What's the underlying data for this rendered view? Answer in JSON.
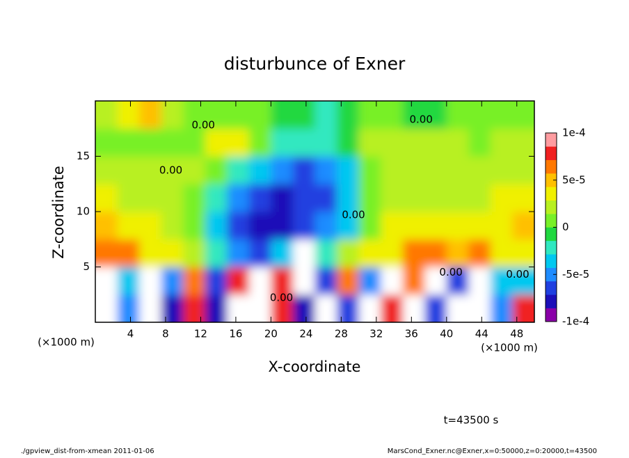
{
  "chart_data": {
    "type": "heatmap",
    "title": "disturbunce of Exner",
    "xlabel": "X-coordinate",
    "ylabel": "Z-coordinate",
    "xunit": "(×1000 m)",
    "yunit": "(×1000 m)",
    "time_label": "t=43500 s",
    "footer_left": "./gpview_dist-from-xmean  2011-01-06",
    "footer_right": "MarsCond_Exner.nc@Exner,x=0:50000,z=0:20000,t=43500",
    "xlim": [
      0,
      50
    ],
    "ylim": [
      0,
      20
    ],
    "xticks": [
      4,
      8,
      12,
      16,
      20,
      24,
      28,
      32,
      36,
      40,
      44,
      48
    ],
    "yticks": [
      5,
      10,
      15
    ],
    "x": [
      1.25,
      3.75,
      6.25,
      8.75,
      11.25,
      13.75,
      16.25,
      18.75,
      21.25,
      23.75,
      26.25,
      28.75,
      31.25,
      33.75,
      36.25,
      38.75,
      41.25,
      43.75,
      46.25,
      48.75
    ],
    "y": [
      1.25,
      3.75,
      6.25,
      8.75,
      11.25,
      13.75,
      16.25,
      18.75
    ],
    "values": [
      [
        0.00012,
        -5e-05,
        0.00012,
        -8e-05,
        8e-05,
        -8e-05,
        0.00012,
        0.00012,
        8e-05,
        -8e-05,
        0.00012,
        -7e-05,
        0.00012,
        8e-05,
        0.00012,
        -6e-05,
        0.00012,
        0.00012,
        -5e-05,
        8e-05
      ],
      [
        0.00012,
        -4e-05,
        0.00012,
        -5e-05,
        6e-05,
        -7e-05,
        8e-05,
        0.00012,
        8e-05,
        0.00012,
        -6e-05,
        7e-05,
        -5e-05,
        0.00012,
        7e-05,
        0.00012,
        -7e-05,
        0.00012,
        -4e-05,
        -3e-05
      ],
      [
        7e-05,
        6e-05,
        3e-05,
        4e-05,
        2e-05,
        -2e-05,
        -5e-05,
        -6e-05,
        -4e-05,
        0.00012,
        -2e-05,
        2e-05,
        3e-05,
        4e-05,
        6e-05,
        6e-05,
        5e-05,
        6e-05,
        4e-05,
        3e-05
      ],
      [
        5e-05,
        4e-05,
        3e-05,
        2e-05,
        0,
        -3e-05,
        -7e-05,
        -8e-05,
        -8e-05,
        -7e-05,
        -5e-05,
        -3e-05,
        1e-05,
        3e-05,
        3e-05,
        3e-05,
        3e-05,
        3e-05,
        4e-05,
        5e-05
      ],
      [
        3e-05,
        2e-05,
        2e-05,
        2e-05,
        1e-05,
        -2e-05,
        -5e-05,
        -7e-05,
        -8e-05,
        -7e-05,
        -6e-05,
        -3e-05,
        1e-05,
        2e-05,
        2e-05,
        2e-05,
        2e-05,
        2e-05,
        3e-05,
        3e-05
      ],
      [
        2e-05,
        2e-05,
        2e-05,
        2e-05,
        2e-05,
        1e-05,
        -2e-05,
        -4e-05,
        -5e-05,
        -6e-05,
        -5e-05,
        -3e-05,
        1e-05,
        2e-05,
        2e-05,
        2e-05,
        2e-05,
        2e-05,
        2e-05,
        2e-05
      ],
      [
        1e-05,
        1e-05,
        0,
        1e-05,
        1e-05,
        3e-05,
        4e-05,
        1e-05,
        -2e-05,
        -2e-05,
        -2e-05,
        -1e-05,
        2e-05,
        2e-05,
        2e-05,
        2e-05,
        2e-05,
        1e-05,
        2e-05,
        2e-05
      ],
      [
        2e-05,
        4e-05,
        5e-05,
        2e-05,
        0,
        0,
        1e-05,
        0,
        -1e-05,
        -1e-05,
        -2e-05,
        -1e-05,
        0,
        0,
        -1e-05,
        -1e-05,
        0,
        0,
        1e-05,
        0
      ]
    ],
    "clim": [
      -0.0001,
      0.0001
    ],
    "cticks": [
      {
        "value": 0.0001,
        "label": "1e-4"
      },
      {
        "value": 5e-05,
        "label": "5e-5"
      },
      0,
      {
        "value": -5e-05,
        "label": "-5e-5"
      },
      {
        "value": -0.0001,
        "label": "-1e-4"
      }
    ],
    "colors": [
      "#8a00a8",
      "#1c0fb8",
      "#2040e0",
      "#1f8cff",
      "#00c8f0",
      "#30e8c0",
      "#20d840",
      "#78f028",
      "#b8f020",
      "#f0f000",
      "#ffc000",
      "#ff7800",
      "#f02020",
      "#ff9ca0"
    ],
    "over_color": "#ffffff",
    "annotations": [
      {
        "label": "0.00",
        "x": 12.3,
        "y": 17.8
      },
      {
        "label": "0.00",
        "x": 37.1,
        "y": 18.3
      },
      {
        "label": "0.00",
        "x": 8.6,
        "y": 13.7
      },
      {
        "label": "0.00",
        "x": 29.4,
        "y": 9.7
      },
      {
        "label": "0.00",
        "x": 21.2,
        "y": 2.2
      },
      {
        "label": "0.00",
        "x": 40.5,
        "y": 4.5
      },
      {
        "label": "0.00",
        "x": 48.1,
        "y": 4.3
      }
    ]
  }
}
